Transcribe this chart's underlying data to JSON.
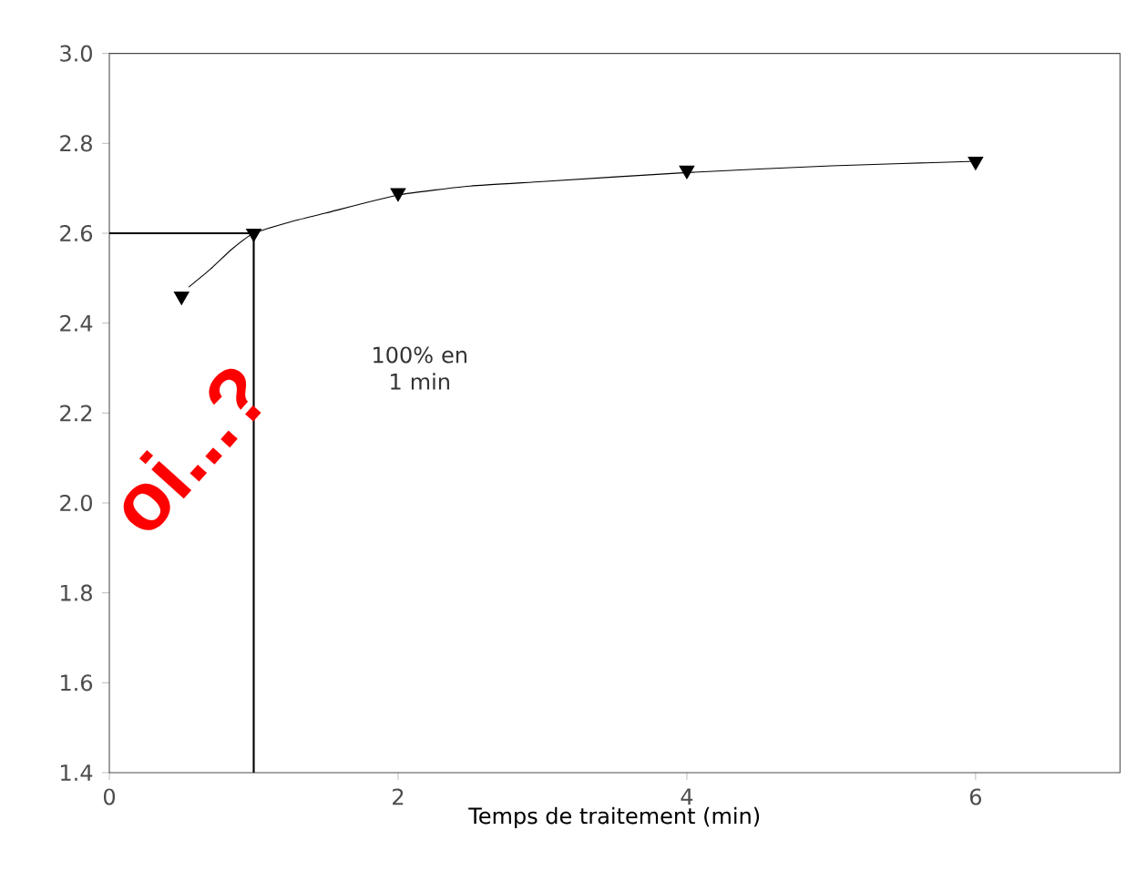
{
  "chart_data": {
    "type": "scatter",
    "xlabel": "Temps de traitement (min)",
    "xlim": [
      0,
      7
    ],
    "xticks": [
      0,
      2,
      4,
      6
    ],
    "ylim": [
      1.4,
      3.0
    ],
    "yticks": [
      1.4,
      1.6,
      1.8,
      {
        "value": 2.0,
        "label": "2.0"
      },
      2.2,
      2.4,
      2.6,
      2.8,
      {
        "value": 3.0,
        "label": "3.0"
      }
    ],
    "marker": "triangle",
    "grid": false,
    "series": [
      {
        "color": "#000000",
        "x": [
          0.5,
          1,
          2,
          4,
          6
        ],
        "values": [
          2.46,
          2.6,
          2.69,
          2.74,
          2.76
        ]
      },
      {
        "type": "line",
        "color": "#000000",
        "marker": "none",
        "x": [
          0.55,
          0.7,
          0.85,
          1,
          1.25,
          1.5,
          2,
          2.5,
          3,
          4,
          5,
          6
        ],
        "values": [
          2.48,
          2.52,
          2.565,
          2.6,
          2.625,
          2.645,
          2.685,
          2.705,
          2.715,
          2.735,
          2.75,
          2.76
        ]
      }
    ],
    "ref_lines": [
      {
        "axis": "y",
        "value": 2.6,
        "color": "#000000"
      },
      {
        "axis": "x",
        "value": 1,
        "color": "#000000"
      }
    ],
    "annotations": [
      "100% en 1 min",
      "oi...?"
    ]
  }
}
